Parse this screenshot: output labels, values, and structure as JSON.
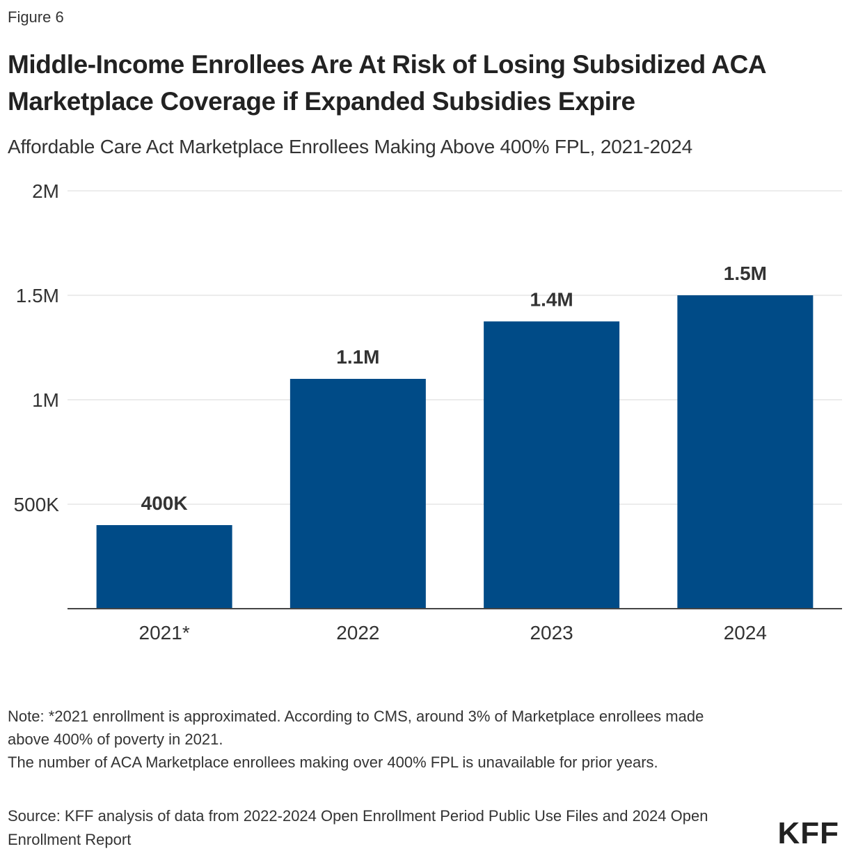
{
  "figure_label": "Figure 6",
  "title": "Middle-Income Enrollees Are At Risk of Losing Subsidized ACA Marketplace Coverage if Expanded Subsidies Expire",
  "subtitle": "Affordable Care Act Marketplace Enrollees Making Above 400% FPL, 2021-2024",
  "note_lines": [
    "Note: *2021 enrollment is approximated. According to CMS, around 3% of Marketplace enrollees made above 400% of poverty in 2021.",
    "The number of ACA Marketplace enrollees making over 400% FPL is unavailable for prior years."
  ],
  "source": "Source: KFF analysis of data from 2022-2024 Open Enrollment Period Public Use Files and 2024 Open Enrollment Report",
  "logo": "KFF",
  "colors": {
    "bar": "#004B87",
    "grid": "#d9d9d9",
    "axis": "#444444"
  },
  "chart_data": {
    "type": "bar",
    "categories": [
      "2021*",
      "2022",
      "2023",
      "2024"
    ],
    "values": [
      400000,
      1100000,
      1375000,
      1500000
    ],
    "data_labels": [
      "400K",
      "1.1M",
      "1.4M",
      "1.5M"
    ],
    "y_ticks": [
      {
        "value": 500000,
        "label": "500K"
      },
      {
        "value": 1000000,
        "label": "1M"
      },
      {
        "value": 1500000,
        "label": "1.5M"
      },
      {
        "value": 2000000,
        "label": "2M"
      }
    ],
    "ylim": [
      0,
      2000000
    ],
    "xlabel": "",
    "ylabel": "",
    "grid": true,
    "legend": "none"
  }
}
